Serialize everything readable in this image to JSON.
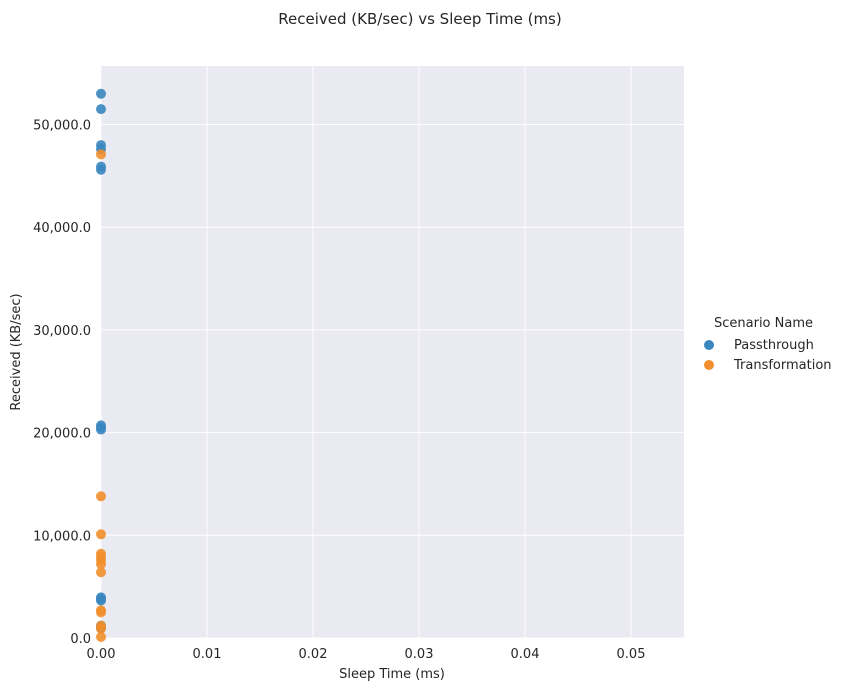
{
  "chart_data": {
    "type": "scatter",
    "title": "Received (KB/sec) vs Sleep Time (ms)",
    "xlabel": "Sleep Time (ms)",
    "ylabel": "Received (KB/sec)",
    "xlim": [
      0,
      0.055
    ],
    "ylim": [
      0,
      55700
    ],
    "xticks": [
      0.0,
      0.01,
      0.02,
      0.03,
      0.04,
      0.05
    ],
    "xtick_labels": [
      "0.00",
      "0.01",
      "0.02",
      "0.03",
      "0.04",
      "0.05"
    ],
    "yticks": [
      0,
      10000,
      20000,
      30000,
      40000,
      50000
    ],
    "ytick_labels": [
      "0.0",
      "10,000.0",
      "20,000.0",
      "30,000.0",
      "40,000.0",
      "50,000.0"
    ],
    "grid": true,
    "legend": {
      "title": "Scenario Name",
      "placement": "right"
    },
    "series": [
      {
        "name": "Passthrough",
        "color": "#3a86bf",
        "points": [
          {
            "x": 0,
            "y": 53000
          },
          {
            "x": 0,
            "y": 51500
          },
          {
            "x": 0,
            "y": 48000
          },
          {
            "x": 0,
            "y": 47600
          },
          {
            "x": 0,
            "y": 45900
          },
          {
            "x": 0,
            "y": 45600
          },
          {
            "x": 0,
            "y": 20700
          },
          {
            "x": 0,
            "y": 20500
          },
          {
            "x": 0,
            "y": 20300
          },
          {
            "x": 0,
            "y": 3950
          },
          {
            "x": 0,
            "y": 3800
          },
          {
            "x": 0,
            "y": 3650
          },
          {
            "x": 0,
            "y": 1200
          },
          {
            "x": 0,
            "y": 1100
          },
          {
            "x": 0,
            "y": 1000
          }
        ]
      },
      {
        "name": "Transformation",
        "color": "#f28e2b",
        "points": [
          {
            "x": 0,
            "y": 47100
          },
          {
            "x": 0,
            "y": 13800
          },
          {
            "x": 0,
            "y": 10100
          },
          {
            "x": 0,
            "y": 8200
          },
          {
            "x": 0,
            "y": 7900
          },
          {
            "x": 0,
            "y": 7600
          },
          {
            "x": 0,
            "y": 7200
          },
          {
            "x": 0,
            "y": 6400
          },
          {
            "x": 0,
            "y": 2700
          },
          {
            "x": 0,
            "y": 2500
          },
          {
            "x": 0,
            "y": 1200
          },
          {
            "x": 0,
            "y": 900
          },
          {
            "x": 0,
            "y": 100
          }
        ]
      }
    ]
  }
}
